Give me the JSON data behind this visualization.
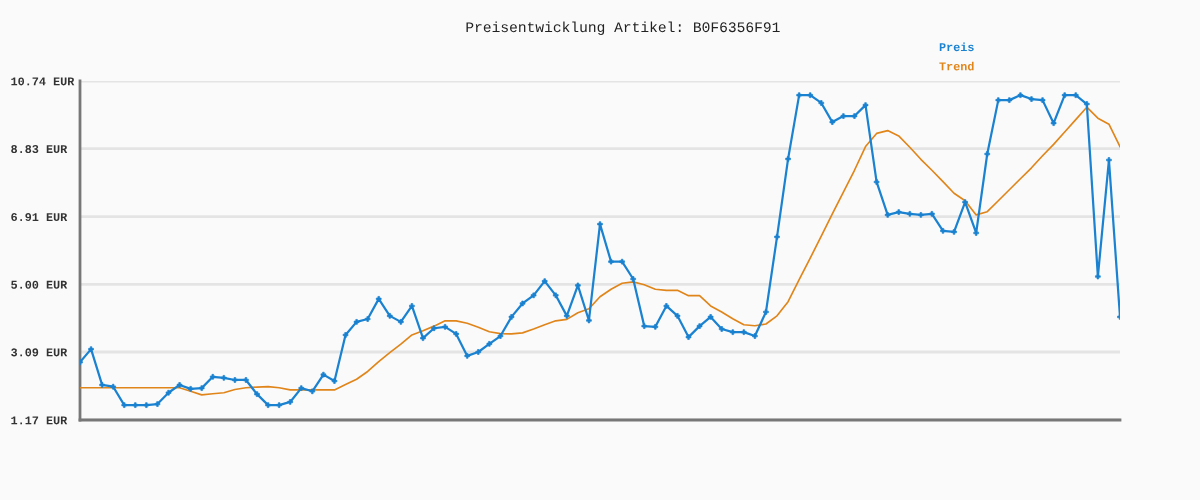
{
  "chart_data": {
    "type": "line",
    "title": "Preisentwicklung Artikel: B0F6356F91",
    "categories": [
      null,
      null,
      null,
      null,
      null,
      null,
      null,
      null,
      null,
      null,
      null,
      null,
      null,
      null,
      null,
      null,
      null,
      null,
      null,
      null,
      null,
      null,
      null,
      null,
      null,
      null,
      null,
      null,
      null,
      null,
      null,
      null,
      null,
      null,
      null,
      null,
      null,
      null,
      null,
      null,
      null,
      null,
      null,
      null,
      null,
      null,
      null,
      null,
      null,
      null,
      null,
      null,
      null,
      null,
      null,
      null,
      null,
      null,
      null,
      null,
      null,
      null,
      null,
      null,
      null,
      null,
      null,
      null,
      null,
      null,
      null,
      null,
      null,
      null,
      null,
      null,
      null,
      null,
      null,
      null,
      null,
      null,
      null,
      null,
      null,
      null,
      null,
      null,
      null,
      null,
      null,
      null,
      null,
      null,
      null
    ],
    "series": [
      {
        "name": "Preis",
        "color": "#1a82d0",
        "marker": "cross",
        "values": [
          2.8,
          3.17,
          2.16,
          2.11,
          1.59,
          1.59,
          1.59,
          1.62,
          1.94,
          2.16,
          2.05,
          2.07,
          2.39,
          2.36,
          2.3,
          2.3,
          1.9,
          1.59,
          1.59,
          1.68,
          2.07,
          1.98,
          2.45,
          2.27,
          3.57,
          3.94,
          4.02,
          4.59,
          4.11,
          3.94,
          4.39,
          3.48,
          3.76,
          3.8,
          3.6,
          2.98,
          3.09,
          3.32,
          3.54,
          4.08,
          4.46,
          4.69,
          5.09,
          4.69,
          4.11,
          4.97,
          3.98,
          6.7,
          5.64,
          5.64,
          5.15,
          3.82,
          3.8,
          4.39,
          4.11,
          3.51,
          3.82,
          4.08,
          3.74,
          3.65,
          3.65,
          3.54,
          4.22,
          6.34,
          8.54,
          10.34,
          10.34,
          10.12,
          9.58,
          9.75,
          9.75,
          10.06,
          7.89,
          6.96,
          7.04,
          6.99,
          6.96,
          6.99,
          6.51,
          6.48,
          7.32,
          6.45,
          8.68,
          10.2,
          10.2,
          10.34,
          10.23,
          10.2,
          9.55,
          10.34,
          10.34,
          10.09,
          5.22,
          8.51,
          4.08
        ]
      },
      {
        "name": "Trend",
        "color": "#e0851a",
        "marker": "none",
        "values": [
          2.08,
          2.08,
          2.08,
          2.08,
          2.08,
          2.08,
          2.08,
          2.08,
          2.08,
          2.08,
          1.98,
          1.88,
          1.91,
          1.94,
          2.03,
          2.08,
          2.1,
          2.11,
          2.08,
          2.02,
          2.02,
          2.02,
          2.02,
          2.02,
          2.17,
          2.32,
          2.54,
          2.82,
          3.07,
          3.31,
          3.57,
          3.69,
          3.82,
          3.97,
          3.97,
          3.9,
          3.79,
          3.66,
          3.61,
          3.6,
          3.63,
          3.74,
          3.86,
          3.97,
          4.01,
          4.2,
          4.31,
          4.65,
          4.86,
          5.03,
          5.07,
          4.99,
          4.86,
          4.83,
          4.83,
          4.68,
          4.68,
          4.39,
          4.22,
          4.03,
          3.86,
          3.83,
          3.88,
          4.11,
          4.51,
          5.13,
          5.74,
          6.36,
          6.99,
          7.6,
          8.22,
          8.89,
          9.26,
          9.34,
          9.19,
          8.87,
          8.53,
          8.22,
          7.9,
          7.57,
          7.36,
          6.96,
          7.05,
          7.36,
          7.67,
          7.98,
          8.29,
          8.63,
          8.95,
          9.3,
          9.65,
          10.0,
          9.69,
          9.52,
          8.89
        ]
      }
    ],
    "ylim": [
      1.17,
      10.74
    ],
    "yticks": [
      {
        "value": 1.17,
        "label": "1.17 EUR"
      },
      {
        "value": 3.09,
        "label": "3.09 EUR"
      },
      {
        "value": 5.0,
        "label": "5.00 EUR"
      },
      {
        "value": 6.91,
        "label": "6.91 EUR"
      },
      {
        "value": 8.83,
        "label": "8.83 EUR"
      },
      {
        "value": 10.74,
        "label": "10.74 EUR"
      }
    ],
    "grid": "y",
    "legend": "top right",
    "tick_labels": "y",
    "line_style": "solid"
  }
}
